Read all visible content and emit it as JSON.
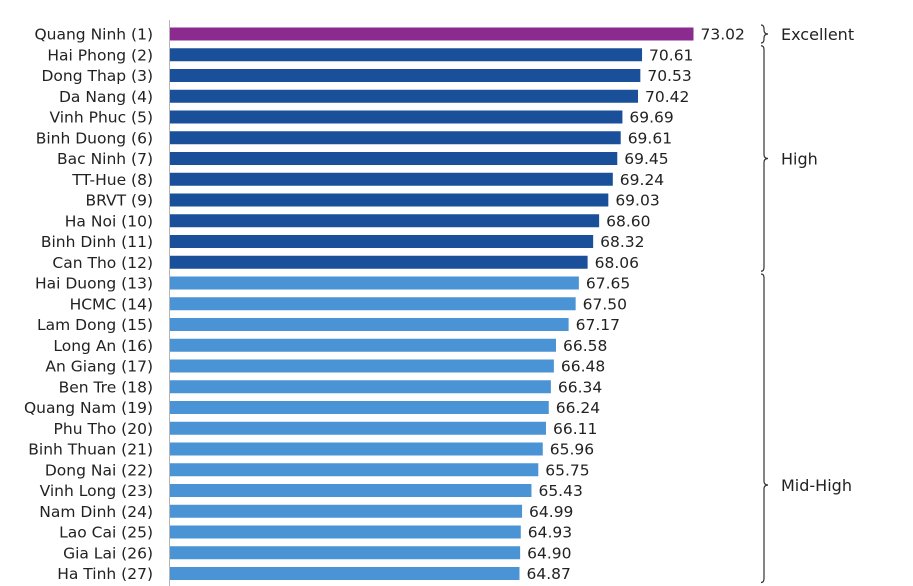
{
  "chart_data": {
    "type": "bar",
    "orientation": "horizontal",
    "categories": [
      "Quang Ninh (1)",
      "Hai Phong (2)",
      "Dong Thap (3)",
      "Da Nang (4)",
      "Vinh Phuc (5)",
      "Binh Duong (6)",
      "Bac Ninh (7)",
      "TT-Hue (8)",
      "BRVT (9)",
      "Ha Noi (10)",
      "Binh Dinh (11)",
      "Can Tho (12)",
      "Hai Duong (13)",
      "HCMC (14)",
      "Lam Dong (15)",
      "Long An (16)",
      "An Giang (17)",
      "Ben Tre (18)",
      "Quang Nam (19)",
      "Phu Tho (20)",
      "Binh Thuan (21)",
      "Dong Nai (22)",
      "Vinh Long (23)",
      "Nam Dinh (24)",
      "Lao Cai (25)",
      "Gia Lai (26)",
      "Ha Tinh (27)"
    ],
    "values": [
      73.02,
      70.61,
      70.53,
      70.42,
      69.69,
      69.61,
      69.45,
      69.24,
      69.03,
      68.6,
      68.32,
      68.06,
      67.65,
      67.5,
      67.17,
      66.58,
      66.48,
      66.34,
      66.24,
      66.11,
      65.96,
      65.75,
      65.43,
      64.99,
      64.93,
      64.9,
      64.87
    ],
    "value_labels": [
      "73.02",
      "70.61",
      "70.53",
      "70.42",
      "69.69",
      "69.61",
      "69.45",
      "69.24",
      "69.03",
      "68.60",
      "68.32",
      "68.06",
      "67.65",
      "67.50",
      "67.17",
      "66.58",
      "66.48",
      "66.34",
      "66.24",
      "66.11",
      "65.96",
      "65.75",
      "65.43",
      "64.99",
      "64.93",
      "64.90",
      "64.87"
    ],
    "tiers": [
      {
        "label": "Excellent",
        "first": 0,
        "last": 0,
        "color": "#8b2a8f"
      },
      {
        "label": "High",
        "first": 1,
        "last": 11,
        "color": "#1a4f99"
      },
      {
        "label": "Mid-High",
        "first": 12,
        "last": 26,
        "color": "#4a93d4"
      }
    ],
    "title": "",
    "xlabel": "",
    "ylabel": "",
    "grid": false,
    "legend": "none"
  }
}
